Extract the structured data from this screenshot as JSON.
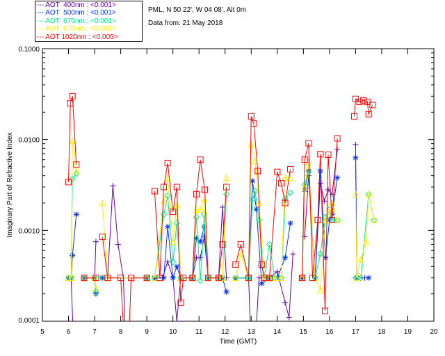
{
  "header": {
    "station": "PML, N 50 22', W 04 08', Alt 0m",
    "date": "Data from: 21 May 2018"
  },
  "chart_data": {
    "type": "line",
    "title": "",
    "xlabel": "Time (GMT)",
    "ylabel": "Imaginary Part of Refractive Index",
    "xlim": [
      5,
      20
    ],
    "ylim": [
      0.0001,
      0.1
    ],
    "yscale": "log",
    "xticks": [
      "5",
      "6",
      "7",
      "8",
      "9",
      "10",
      "11",
      "12",
      "13",
      "14",
      "15",
      "16",
      "17",
      "18",
      "19",
      "20"
    ],
    "yticks": [
      "0.0001",
      "0.0010",
      "0.0100",
      "0.1000"
    ],
    "legend_position": "top-left-outside",
    "series": [
      {
        "name": "AOT  400nm : <0.001>",
        "color": "#6600aa",
        "marker": "plus",
        "points": [
          [
            6.0,
            0.0003
          ],
          [
            6.1,
            0.0003
          ],
          [
            6.2,
            5e-05
          ],
          null,
          [
            7.0,
            0.0003
          ],
          [
            7.05,
            0.00075
          ],
          null,
          [
            7.5,
            0.0003
          ],
          [
            7.7,
            0.0031
          ],
          [
            7.9,
            0.0007
          ],
          [
            8.1,
            0.0003
          ],
          [
            8.2,
            5e-05
          ],
          null,
          [
            9.3,
            0.0003
          ],
          [
            9.6,
            0.0003
          ],
          [
            9.8,
            0.00045
          ],
          [
            10.0,
            0.0003
          ],
          [
            10.15,
            0.0001
          ],
          [
            10.3,
            0.0003
          ],
          [
            10.75,
            0.0003
          ],
          [
            10.9,
            0.0005
          ],
          [
            11.05,
            0.0005
          ],
          [
            11.2,
            0.00085
          ],
          [
            11.35,
            0.0003
          ],
          [
            11.75,
            0.0003
          ],
          [
            11.9,
            0.0018
          ],
          [
            12.05,
            0.0003
          ],
          null,
          [
            12.4,
            0.0003
          ],
          [
            12.9,
            0.0003
          ],
          [
            13.0,
            5e-05
          ],
          [
            13.15,
            5e-05
          ],
          [
            13.3,
            0.0003
          ],
          [
            13.7,
            0.0003
          ],
          [
            14.0,
            0.00035
          ],
          [
            14.3,
            0.00016
          ],
          [
            14.45,
            0.00011
          ],
          [
            14.6,
            0.00055
          ],
          null,
          [
            15.05,
            0.00085
          ],
          [
            15.2,
            0.004
          ],
          [
            15.45,
            0.0003
          ],
          [
            15.65,
            0.0033
          ],
          [
            15.8,
            0.0021
          ],
          [
            15.95,
            0.0028
          ],
          [
            16.1,
            0.0025
          ],
          [
            16.3,
            0.0078
          ],
          null,
          [
            17.0,
            0.0088
          ],
          [
            17.05,
            0.0003
          ],
          [
            17.35,
            0.0003
          ]
        ]
      },
      {
        "name": "AOT  500nm : <0.001>",
        "color": "#0033ff",
        "marker": "asterisk",
        "points": [
          [
            6.0,
            0.0003
          ],
          [
            6.1,
            0.0003
          ],
          [
            6.15,
            0.00053
          ],
          [
            6.3,
            0.0015
          ],
          null,
          [
            6.6,
            0.0003
          ],
          [
            7.0,
            0.0003
          ],
          [
            7.05,
            0.0002
          ],
          null,
          [
            7.3,
            0.0003
          ],
          [
            9.0,
            0.0003
          ],
          null,
          [
            9.3,
            0.0003
          ],
          [
            9.65,
            0.0003
          ],
          [
            9.8,
            0.0011
          ],
          [
            10.0,
            0.0003
          ],
          [
            10.15,
            0.0004
          ],
          [
            10.3,
            0.0003
          ],
          [
            10.75,
            0.0003
          ],
          [
            10.9,
            0.00082
          ],
          [
            11.05,
            0.00075
          ],
          [
            11.2,
            0.0011
          ],
          [
            11.35,
            0.0003
          ],
          [
            11.75,
            0.0003
          ],
          [
            11.9,
            0.0003
          ],
          [
            12.05,
            0.00021
          ],
          null,
          [
            12.4,
            0.0003
          ],
          [
            12.9,
            0.0003
          ],
          [
            13.05,
            0.0035
          ],
          [
            13.2,
            0.0017
          ],
          [
            13.4,
            0.00026
          ],
          [
            13.7,
            0.0003
          ],
          [
            14.0,
            0.0003
          ],
          [
            14.3,
            0.0005
          ],
          [
            14.5,
            0.0012
          ],
          null,
          [
            14.95,
            0.0003
          ],
          [
            15.05,
            0.0028
          ],
          [
            15.2,
            0.0045
          ],
          [
            15.45,
            0.0003
          ],
          [
            15.65,
            0.0045
          ],
          [
            15.85,
            0.0005
          ],
          [
            16.0,
            0.0013
          ],
          [
            16.1,
            0.0015
          ],
          [
            16.3,
            0.0038
          ],
          null,
          [
            17.0,
            0.0063
          ],
          [
            17.05,
            0.0003
          ],
          [
            17.5,
            0.0003
          ]
        ]
      },
      {
        "name": "AOT  675nm : <0.001>",
        "color": "#00ee88",
        "marker": "diamond",
        "points": [
          [
            6.0,
            0.0003
          ],
          [
            6.1,
            0.0003
          ],
          [
            6.15,
            0.0037
          ],
          [
            6.3,
            0.0042
          ],
          null,
          [
            6.6,
            0.0003
          ],
          [
            7.0,
            0.0003
          ],
          [
            7.05,
            0.00021
          ],
          null,
          [
            7.3,
            0.0003
          ],
          [
            9.0,
            0.0003
          ],
          null,
          [
            9.3,
            0.0003
          ],
          [
            9.65,
            0.0015
          ],
          [
            9.8,
            0.0024
          ],
          [
            10.0,
            0.00045
          ],
          [
            10.15,
            0.0012
          ],
          [
            10.3,
            0.0003
          ],
          [
            10.75,
            0.0003
          ],
          [
            10.9,
            0.0014
          ],
          [
            11.05,
            0.00028
          ],
          [
            11.2,
            0.0015
          ],
          [
            11.35,
            0.0003
          ],
          [
            11.75,
            0.0003
          ],
          [
            11.9,
            0.0003
          ],
          [
            12.05,
            0.0025
          ],
          null,
          [
            12.4,
            0.0003
          ],
          [
            12.9,
            0.0003
          ],
          [
            13.05,
            0.0022
          ],
          [
            13.15,
            0.0027
          ],
          [
            13.3,
            0.0013
          ],
          [
            13.5,
            0.0003
          ],
          [
            13.7,
            0.0007
          ],
          [
            13.9,
            0.0003
          ],
          [
            14.15,
            0.0003
          ],
          [
            14.3,
            0.0022
          ],
          [
            14.5,
            0.0026
          ],
          null,
          [
            14.95,
            0.0003
          ],
          [
            15.05,
            0.0032
          ],
          [
            15.2,
            0.0045
          ],
          [
            15.45,
            0.0003
          ],
          [
            15.65,
            0.00055
          ],
          [
            15.85,
            0.0014
          ],
          [
            16.0,
            0.0017
          ],
          [
            16.1,
            0.0013
          ],
          [
            16.3,
            0.0013
          ],
          null,
          [
            17.0,
            0.0003
          ],
          [
            17.2,
            0.0003
          ],
          [
            17.5,
            0.0025
          ],
          [
            17.7,
            0.0013
          ]
        ]
      },
      {
        "name": "AOT  870nm : <0.001>",
        "color": "#ffee00",
        "marker": "triangle",
        "points": [
          [
            6.0,
            0.0003
          ],
          [
            6.1,
            0.0003
          ],
          [
            6.15,
            0.0097
          ],
          [
            6.3,
            0.0045
          ],
          null,
          [
            6.6,
            0.0003
          ],
          [
            7.0,
            0.0003
          ],
          [
            7.05,
            0.00023
          ],
          null,
          [
            7.3,
            0.002
          ],
          [
            7.5,
            0.0003
          ],
          [
            9.0,
            0.0003
          ],
          null,
          [
            9.3,
            0.0003
          ],
          [
            9.65,
            0.0021
          ],
          [
            9.8,
            0.0038
          ],
          [
            10.0,
            0.00075
          ],
          [
            10.15,
            0.0019
          ],
          [
            10.3,
            0.0003
          ],
          [
            10.75,
            0.0003
          ],
          [
            10.9,
            0.0017
          ],
          [
            11.05,
            0.0017
          ],
          [
            11.2,
            0.0022
          ],
          [
            11.35,
            0.0003
          ],
          [
            11.75,
            0.0003
          ],
          [
            11.9,
            0.0003
          ],
          [
            12.05,
            0.0038
          ],
          null,
          [
            12.4,
            0.0003
          ],
          [
            12.6,
            0.00055
          ],
          [
            12.9,
            0.0003
          ],
          [
            13.0,
            0.009
          ],
          [
            13.15,
            0.0058
          ],
          [
            13.3,
            0.002
          ],
          [
            13.5,
            0.0003
          ],
          [
            13.7,
            0.0003
          ],
          [
            13.9,
            0.0003
          ],
          [
            14.15,
            0.0003
          ],
          [
            14.3,
            0.0038
          ],
          [
            14.5,
            0.0038
          ],
          null,
          [
            14.95,
            0.0003
          ],
          [
            15.05,
            0.003
          ],
          [
            15.2,
            0.0056
          ],
          [
            15.45,
            0.0003
          ],
          [
            15.65,
            0.00022
          ],
          [
            15.85,
            0.0013
          ],
          [
            16.0,
            0.0016
          ],
          [
            16.1,
            0.002
          ],
          [
            16.3,
            0.0013
          ],
          null,
          [
            17.0,
            0.0025
          ],
          [
            17.05,
            0.0003
          ],
          [
            17.2,
            0.00048
          ],
          [
            17.4,
            0.00075
          ],
          [
            17.5,
            0.0025
          ],
          [
            17.7,
            0.0013
          ]
        ]
      },
      {
        "name": "AOT 1020nm : <0.005>",
        "color": "#ff0000",
        "marker": "square",
        "points": [
          [
            6.0,
            0.0034
          ],
          [
            6.07,
            0.025
          ],
          [
            6.15,
            0.03
          ],
          [
            6.3,
            0.0053
          ],
          null,
          [
            6.6,
            0.0003
          ],
          [
            7.05,
            0.0003
          ],
          null,
          [
            7.3,
            0.00085
          ],
          [
            7.5,
            0.0003
          ],
          [
            8.0,
            0.0003
          ],
          [
            8.15,
            5e-05
          ],
          [
            8.3,
            5e-05
          ],
          [
            8.4,
            0.0003
          ],
          [
            9.0,
            0.0003
          ],
          null,
          [
            9.3,
            0.0027
          ],
          [
            9.5,
            0.0003
          ],
          [
            9.65,
            0.003
          ],
          [
            9.8,
            0.0055
          ],
          [
            10.0,
            0.0016
          ],
          [
            10.15,
            0.003
          ],
          [
            10.3,
            0.00016
          ],
          [
            10.4,
            0.0003
          ],
          [
            10.75,
            0.0003
          ],
          [
            10.9,
            0.0025
          ],
          [
            11.05,
            0.006
          ],
          [
            11.22,
            0.0028
          ],
          [
            11.35,
            0.0003
          ],
          [
            11.75,
            0.0003
          ],
          [
            11.9,
            0.0007
          ],
          [
            12.05,
            0.003
          ],
          null,
          [
            12.4,
            0.00042
          ],
          [
            12.6,
            0.0007
          ],
          [
            12.9,
            0.0003
          ],
          [
            13.0,
            0.018
          ],
          [
            13.1,
            0.015
          ],
          [
            13.25,
            0.0045
          ],
          [
            13.4,
            0.00042
          ],
          [
            13.5,
            0.0003
          ],
          [
            13.7,
            0.0003
          ],
          [
            14.0,
            0.0044
          ],
          [
            14.15,
            0.0033
          ],
          [
            14.3,
            0.002
          ],
          [
            14.5,
            0.0047
          ],
          null,
          [
            14.95,
            0.0003
          ],
          [
            15.05,
            0.006
          ],
          [
            15.2,
            0.0091
          ],
          [
            15.35,
            0.0003
          ],
          [
            15.55,
            0.0013
          ],
          [
            15.65,
            0.0069
          ],
          [
            15.83,
            0.00013
          ],
          [
            15.95,
            0.0068
          ],
          [
            16.1,
            0.0013
          ],
          [
            16.3,
            0.0103
          ],
          null,
          [
            16.95,
            0.018
          ],
          [
            17.0,
            0.028
          ],
          [
            17.15,
            0.026
          ],
          [
            17.3,
            0.027
          ],
          [
            17.45,
            0.026
          ],
          [
            17.5,
            0.019
          ],
          [
            17.65,
            0.024
          ]
        ]
      }
    ]
  }
}
